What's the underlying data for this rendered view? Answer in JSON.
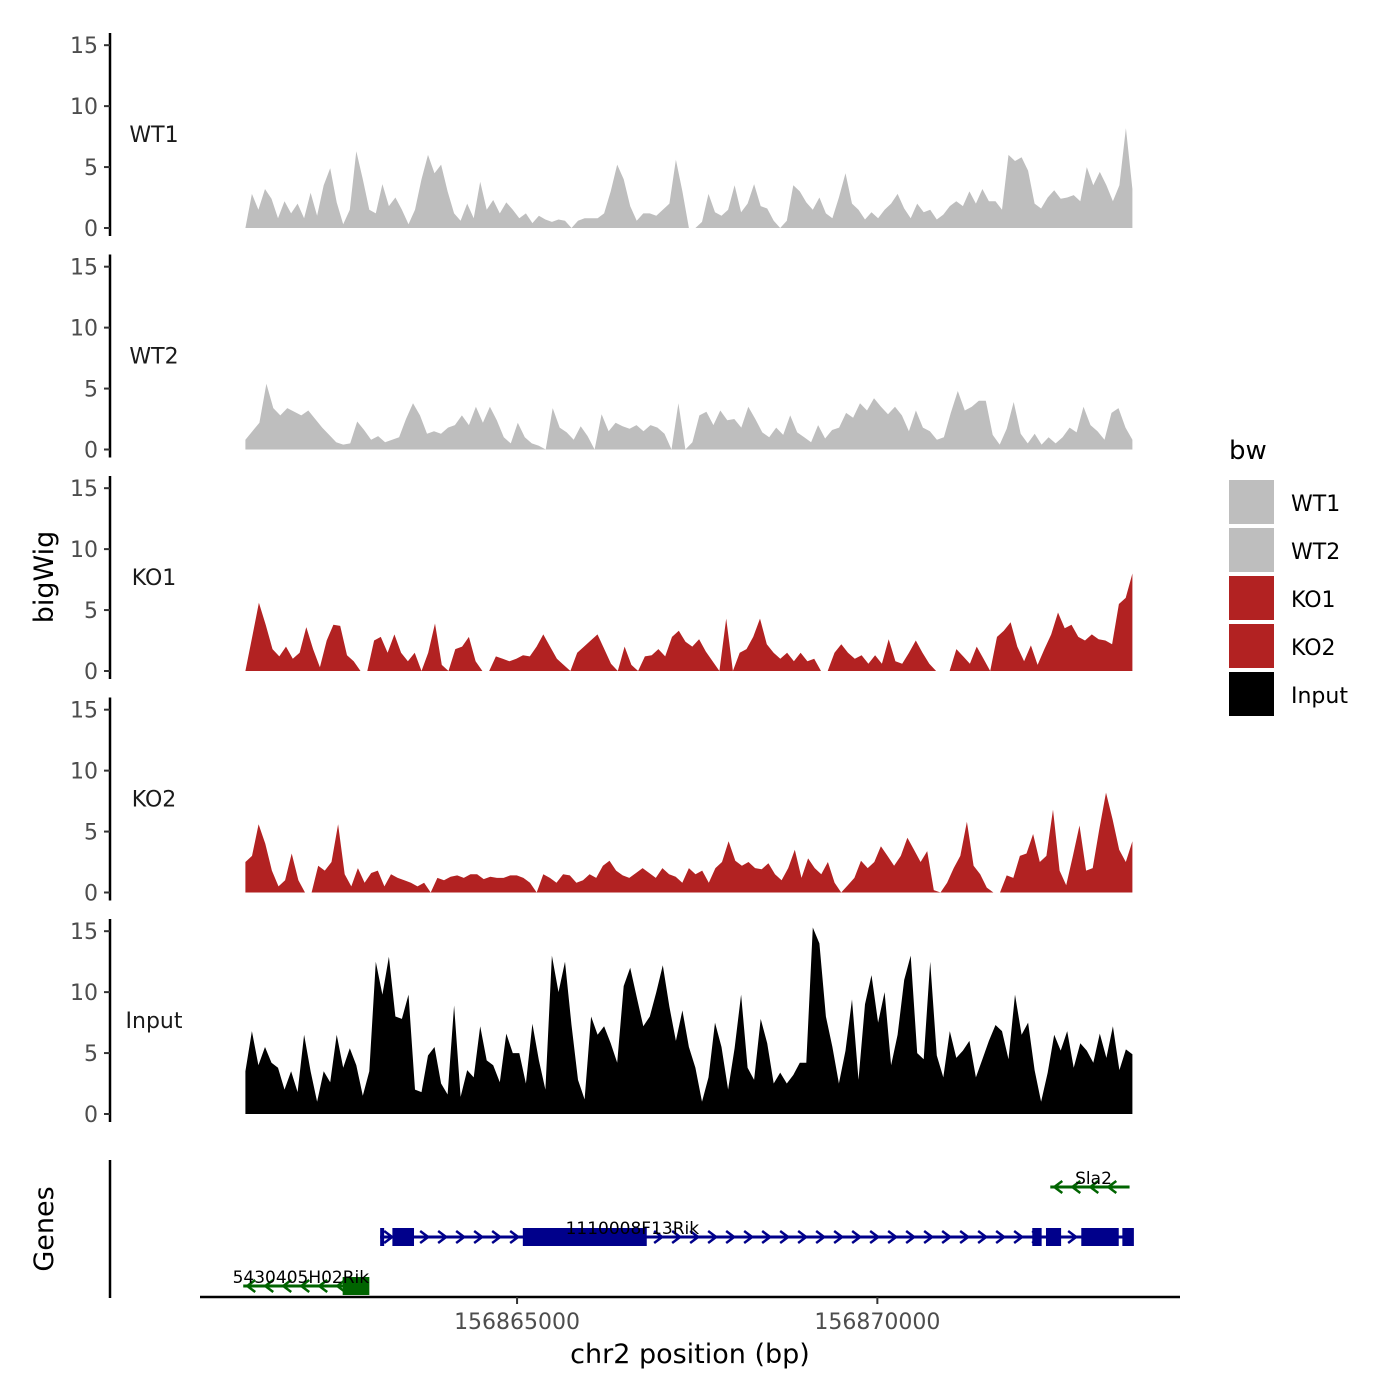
{
  "chart_data": {
    "type": "area",
    "title": "",
    "ylabel": "bigWig",
    "xlabel": "chr2 position (bp)",
    "x_ticks": [
      156865000,
      156870000
    ],
    "x_tick_labels": [
      "156865000",
      "156870000"
    ],
    "xlim": [
      156860600,
      156874200
    ],
    "data_xrange": [
      156861230,
      156873540
    ],
    "ylim": [
      0,
      16
    ],
    "y_ticks": [
      0,
      5,
      10,
      15
    ],
    "y_tick_labels": [
      "0",
      "5",
      "10",
      "15"
    ],
    "legend": {
      "title": "bw",
      "position": "right",
      "entries": [
        {
          "name": "WT1",
          "color": "#bebebe"
        },
        {
          "name": "WT2",
          "color": "#bebebe"
        },
        {
          "name": "KO1",
          "color": "#b22222"
        },
        {
          "name": "KO2",
          "color": "#b22222"
        },
        {
          "name": "Input",
          "color": "#000000"
        }
      ]
    },
    "series": [
      {
        "name": "WT1",
        "color": "#bebebe",
        "values": [
          0,
          2.8,
          1.5,
          3.2,
          2.4,
          0.8,
          2.2,
          1.2,
          2.0,
          0.8,
          2.9,
          1.0,
          3.5,
          4.9,
          2.1,
          0.3,
          1.5,
          6.3,
          4.0,
          1.5,
          1.2,
          3.6,
          1.8,
          2.5,
          1.5,
          0.3,
          1.5,
          4.0,
          6.0,
          4.5,
          5.2,
          3.0,
          1.2,
          0.6,
          2.0,
          0.8,
          3.8,
          1.5,
          2.3,
          1.2,
          2.1,
          1.5,
          0.8,
          1.2,
          0.4,
          1.0,
          0.7,
          0.5,
          0.7,
          0.6,
          0,
          0.6,
          0.8,
          0.8,
          0.8,
          1.2,
          3.0,
          5.2,
          4.0,
          1.8,
          0.6,
          1.2,
          1.2,
          1.0,
          1.5,
          2.0,
          5.6,
          3.0,
          0,
          0,
          0.5,
          2.8,
          1.3,
          1.0,
          1.5,
          3.5,
          1.3,
          2.0,
          3.6,
          1.8,
          1.6,
          0.6,
          0,
          0.6,
          3.5,
          3.0,
          2.1,
          1.5,
          2.5,
          1.2,
          0.8,
          2.5,
          4.5,
          2.0,
          1.5,
          0.7,
          1.3,
          0.8,
          1.5,
          2.0,
          2.8,
          1.6,
          0.8,
          2.0,
          1.3,
          1.5,
          0.7,
          1.1,
          1.8,
          2.2,
          1.8,
          3.0,
          2.0,
          3.2,
          2.2,
          2.2,
          1.5,
          6.0,
          5.5,
          5.8,
          4.7,
          2.0,
          1.6,
          2.5,
          3.1,
          2.4,
          2.5,
          2.7,
          2.2,
          5.0,
          3.5,
          4.6,
          3.5,
          2.2,
          3.5,
          8.2,
          3.2
        ]
      },
      {
        "name": "WT2",
        "color": "#bebebe",
        "values": [
          0.8,
          1.5,
          2.2,
          5.4,
          3.4,
          2.8,
          3.4,
          3.1,
          2.8,
          3.2,
          2.5,
          1.8,
          1.2,
          0.6,
          0.4,
          0.5,
          2.3,
          1.6,
          0.8,
          1.1,
          0.6,
          0.8,
          1.0,
          2.5,
          3.8,
          2.8,
          1.3,
          1.5,
          1.3,
          1.8,
          2.0,
          2.8,
          2.0,
          3.5,
          2.2,
          3.5,
          2.4,
          1.0,
          0.5,
          2.2,
          1.0,
          0.5,
          0.3,
          0,
          3.4,
          1.8,
          1.4,
          0.8,
          1.9,
          1.1,
          0,
          2.9,
          1.5,
          2.2,
          1.9,
          1.7,
          2.0,
          1.5,
          2.0,
          1.8,
          1.3,
          0,
          3.8,
          0,
          0.6,
          2.8,
          3.1,
          2.0,
          3.2,
          2.4,
          2.5,
          1.8,
          3.5,
          2.5,
          1.4,
          1.0,
          1.8,
          1.2,
          2.8,
          1.4,
          1.0,
          0.6,
          2.0,
          0.9,
          1.6,
          1.8,
          3.0,
          2.6,
          3.8,
          3.2,
          4.2,
          3.5,
          2.9,
          3.5,
          2.8,
          1.5,
          3.2,
          1.8,
          1.5,
          0.8,
          1.0,
          3.0,
          4.8,
          3.2,
          3.5,
          4.0,
          4.0,
          1.2,
          0.4,
          1.7,
          3.9,
          1.3,
          0.5,
          1.3,
          0.4,
          1.0,
          0.5,
          1.0,
          1.8,
          1.4,
          3.5,
          2.0,
          1.5,
          0.8,
          3.0,
          3.4,
          1.8,
          0.8
        ]
      },
      {
        "name": "KO1",
        "color": "#b22222",
        "values": [
          0,
          2.8,
          5.6,
          3.8,
          1.8,
          1.2,
          2.0,
          1.0,
          1.5,
          3.6,
          1.8,
          0.3,
          2.5,
          3.8,
          3.7,
          1.3,
          0.8,
          0,
          0,
          2.5,
          2.8,
          1.5,
          3.0,
          1.5,
          0.8,
          1.5,
          0,
          1.5,
          3.9,
          0.5,
          0,
          1.8,
          2.0,
          2.8,
          0.8,
          0,
          0,
          1.2,
          1.0,
          0.8,
          1.0,
          1.3,
          1.2,
          2.0,
          3.0,
          2.0,
          1.0,
          0.5,
          0,
          1.5,
          2.0,
          2.5,
          3.0,
          1.8,
          0.6,
          0,
          2.0,
          0.5,
          0,
          1.2,
          1.3,
          1.8,
          1.2,
          2.8,
          3.3,
          2.4,
          2.0,
          2.6,
          1.6,
          0.8,
          0,
          4.3,
          0,
          1.5,
          1.8,
          2.8,
          4.3,
          2.2,
          1.5,
          1.0,
          1.5,
          0.8,
          1.5,
          0.8,
          1.0,
          0,
          0,
          1.5,
          2.2,
          1.5,
          1.0,
          1.3,
          0.6,
          1.3,
          0.6,
          2.6,
          0.8,
          0.6,
          1.5,
          2.5,
          1.5,
          0.6,
          0,
          0,
          0,
          1.8,
          1.2,
          0.6,
          2.0,
          1.0,
          0,
          2.8,
          3.3,
          4.0,
          2.0,
          0.8,
          2.1,
          0.5,
          1.8,
          3.0,
          4.8,
          3.5,
          3.8,
          2.8,
          2.5,
          3.0,
          2.6,
          2.5,
          2.2,
          5.5,
          6.0,
          8.0
        ]
      },
      {
        "name": "KO2",
        "color": "#b22222",
        "values": [
          2.5,
          3.0,
          5.6,
          4.0,
          1.8,
          0.5,
          1.0,
          3.2,
          1.0,
          0,
          0,
          2.2,
          1.8,
          2.5,
          5.6,
          1.5,
          0.5,
          2.0,
          0.8,
          1.6,
          1.8,
          0.5,
          1.5,
          1.2,
          1.0,
          0.8,
          0.5,
          0.8,
          0,
          1.2,
          1.0,
          1.3,
          1.4,
          1.2,
          1.5,
          1.5,
          1.1,
          1.3,
          1.2,
          1.2,
          1.4,
          1.4,
          1.2,
          0.8,
          0,
          1.5,
          1.2,
          0.8,
          1.5,
          1.4,
          0.8,
          1.0,
          1.5,
          1.2,
          2.2,
          2.6,
          1.8,
          1.4,
          1.2,
          1.6,
          2.0,
          1.6,
          1.2,
          2.0,
          1.5,
          1.3,
          0.8,
          2.0,
          1.5,
          1.8,
          0.8,
          2.0,
          2.5,
          4.2,
          2.6,
          2.2,
          2.5,
          2.0,
          1.9,
          2.4,
          1.5,
          1.0,
          2.0,
          3.5,
          1.2,
          2.8,
          2.0,
          1.5,
          2.5,
          0.8,
          0,
          0.6,
          1.2,
          2.6,
          2.0,
          2.5,
          3.8,
          3.0,
          2.2,
          3.0,
          4.5,
          3.5,
          2.5,
          3.4,
          0.2,
          0,
          0.8,
          2.0,
          3.0,
          5.8,
          2.2,
          1.5,
          0.4,
          0,
          0,
          1.4,
          1.2,
          3.0,
          3.2,
          4.8,
          2.5,
          3.0,
          6.8,
          1.8,
          0.6,
          3.0,
          5.5,
          1.8,
          2.0,
          5.2,
          8.2,
          6.0,
          3.5,
          2.5,
          4.2
        ]
      },
      {
        "name": "Input",
        "color": "#000000",
        "values": [
          3.5,
          6.8,
          4.0,
          5.5,
          4.2,
          3.8,
          2.0,
          3.5,
          1.8,
          6.5,
          3.5,
          1.0,
          3.5,
          2.6,
          6.5,
          3.8,
          5.4,
          4.0,
          1.5,
          3.5,
          12.5,
          9.8,
          12.9,
          8.0,
          7.8,
          9.8,
          2.0,
          1.8,
          4.8,
          5.5,
          2.5,
          1.6,
          8.9,
          1.4,
          3.6,
          3.0,
          7.2,
          4.4,
          4.0,
          2.6,
          6.6,
          5.0,
          5.0,
          2.5,
          7.4,
          4.4,
          2.0,
          13.0,
          10.0,
          12.5,
          7.3,
          2.8,
          1.2,
          8.0,
          6.5,
          7.2,
          5.8,
          4.2,
          10.5,
          12.0,
          9.6,
          7.2,
          8.0,
          10.0,
          12.2,
          8.8,
          6.0,
          8.5,
          5.5,
          3.8,
          1.0,
          3.0,
          7.5,
          5.5,
          2.0,
          5.4,
          9.8,
          3.8,
          2.8,
          7.8,
          5.8,
          2.5,
          3.4,
          2.5,
          3.2,
          4.2,
          4.2,
          15.3,
          14.0,
          8.0,
          5.5,
          2.5,
          5.2,
          9.4,
          2.8,
          9.0,
          11.4,
          7.5,
          10.0,
          4.0,
          6.5,
          11.0,
          13.0,
          5.0,
          4.5,
          12.5,
          4.8,
          3.0,
          6.8,
          4.6,
          5.2,
          6.0,
          3.0,
          4.5,
          6.0,
          7.3,
          6.8,
          4.5,
          9.8,
          6.5,
          7.5,
          3.6,
          1.0,
          3.4,
          6.5,
          5.2,
          6.8,
          3.8,
          5.8,
          5.2,
          4.2,
          6.6,
          4.6,
          7.2,
          3.6,
          5.3,
          4.9
        ]
      }
    ],
    "genes_panel": {
      "ylabel": "Genes",
      "genes": [
        {
          "name": "Sla2",
          "strand": "-",
          "start": 156872400,
          "end": 156873500,
          "color": "#006400"
        },
        {
          "name": "1110008F13Rik",
          "strand": "+",
          "start": 156863100,
          "end": 156873500,
          "color": "#00008b"
        },
        {
          "name": "5430405H02Rik",
          "strand": "-",
          "start": 156861200,
          "end": 156862900,
          "color": "#006400"
        }
      ],
      "exons": {
        "1110008F13Rik": [
          [
            156863100,
            156863150
          ],
          [
            156863270,
            156863570
          ],
          [
            156865080,
            156866800
          ],
          [
            156872150,
            156872280
          ],
          [
            156872340,
            156872550
          ],
          [
            156872830,
            156873350
          ],
          [
            156873400,
            156873560
          ]
        ],
        "5430405H02Rik": [
          [
            156862580,
            156862950
          ]
        ]
      }
    }
  }
}
